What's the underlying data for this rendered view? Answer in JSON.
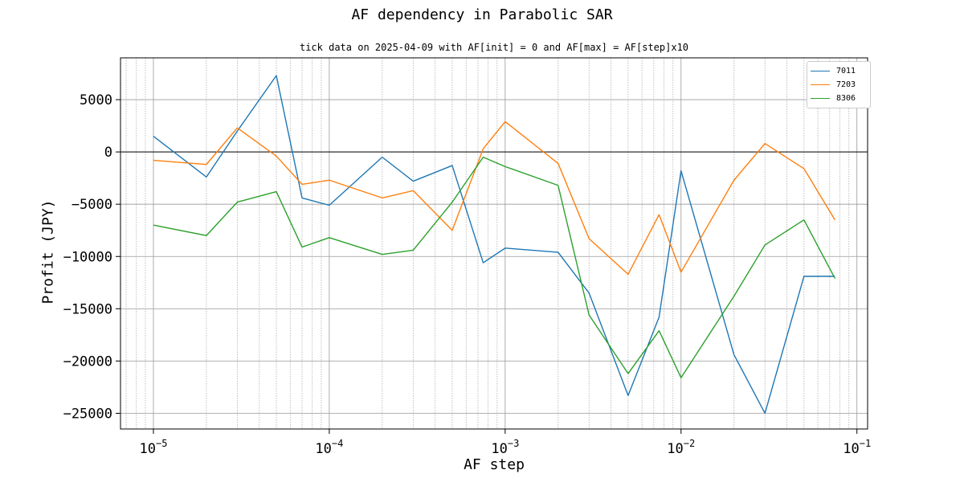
{
  "chart_data": {
    "type": "line",
    "title": "AF dependency in Parabolic SAR",
    "subtitle": "tick data on 2025-04-09 with AF[init] = 0 and AF[max] = AF[step]x10",
    "xlabel": "AF step",
    "ylabel": "Profit (JPY)",
    "xscale": "log",
    "x": [
      1e-05,
      2e-05,
      3e-05,
      5e-05,
      7e-05,
      0.0001,
      0.0002,
      0.0003,
      0.0005,
      0.00075,
      0.001,
      0.002,
      0.003,
      0.005,
      0.0075,
      0.01,
      0.02,
      0.03,
      0.05,
      0.075
    ],
    "xlim": [
      6.5e-06,
      0.115
    ],
    "ylim": [
      -26500,
      9000
    ],
    "xticks": [
      {
        "value": 1e-05,
        "base": "10",
        "exp": "-5"
      },
      {
        "value": 0.0001,
        "base": "10",
        "exp": "-4"
      },
      {
        "value": 0.001,
        "base": "10",
        "exp": "-3"
      },
      {
        "value": 0.01,
        "base": "10",
        "exp": "-2"
      },
      {
        "value": 0.1,
        "base": "10",
        "exp": "-1"
      }
    ],
    "yticks": [
      {
        "value": 5000,
        "label": "5000"
      },
      {
        "value": 0,
        "label": "0"
      },
      {
        "value": -5000,
        "label": "−5000"
      },
      {
        "value": -10000,
        "label": "−10000"
      },
      {
        "value": -15000,
        "label": "−15000"
      },
      {
        "value": -20000,
        "label": "−20000"
      },
      {
        "value": -25000,
        "label": "−25000"
      }
    ],
    "grid": true,
    "legend_position": "top-right",
    "zero_line": true,
    "series": [
      {
        "name": "7011",
        "color": "#1f77b4",
        "values": [
          1500,
          -2400,
          2000,
          7300,
          -4400,
          -5100,
          -500,
          -2800,
          -1300,
          -10600,
          -9200,
          -9600,
          -13500,
          -23300,
          -15800,
          -1800,
          -19400,
          -25000,
          -11900,
          -11900
        ]
      },
      {
        "name": "7203",
        "color": "#ff7f0e",
        "values": [
          -800,
          -1200,
          2300,
          -400,
          -3100,
          -2700,
          -4400,
          -3700,
          -7500,
          300,
          2900,
          -1100,
          -8300,
          -11700,
          -6000,
          -11500,
          -2700,
          800,
          -1600,
          -6500
        ]
      },
      {
        "name": "8306",
        "color": "#2ca02c",
        "values": [
          -7000,
          -8000,
          -4800,
          -3800,
          -9100,
          -8200,
          -9800,
          -9400,
          -4800,
          -500,
          -1400,
          -3200,
          -15600,
          -21200,
          -17100,
          -21600,
          -13800,
          -8900,
          -6500,
          -12100
        ]
      }
    ]
  }
}
